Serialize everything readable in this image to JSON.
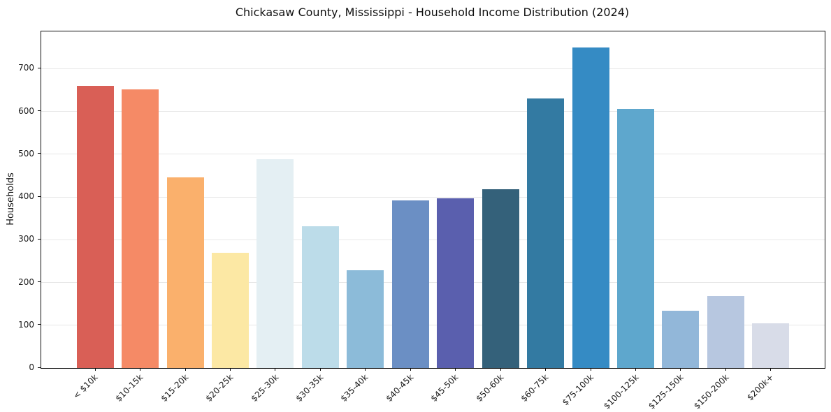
{
  "chart_data": {
    "type": "bar",
    "title": "Chickasaw County, Mississippi - Household Income Distribution (2024)",
    "xlabel": "",
    "ylabel": "Households",
    "categories": [
      "< $10k",
      "$10-15k",
      "$15-20k",
      "$20-25k",
      "$25-30k",
      "$30-35k",
      "$35-40k",
      "$40-45k",
      "$45-50k",
      "$50-60k",
      "$60-75k",
      "$75-100k",
      "$100-125k",
      "$125-150k",
      "$150-200k",
      "$200k+"
    ],
    "values": [
      660,
      652,
      445,
      270,
      489,
      331,
      228,
      392,
      396,
      418,
      631,
      749,
      605,
      134,
      169,
      105
    ],
    "bar_colors": [
      "#d95f56",
      "#f58a66",
      "#fab06c",
      "#fce8a4",
      "#e4eff3",
      "#bcdce9",
      "#8cbbd9",
      "#6b8fc4",
      "#5a5fae",
      "#34617a",
      "#337aa2",
      "#358bc4",
      "#5ea7cd",
      "#92b7d9",
      "#b7c7e0",
      "#d8dce8"
    ],
    "yticks": [
      0,
      100,
      200,
      300,
      400,
      500,
      600,
      700
    ],
    "ylim": [
      0,
      787
    ],
    "grid": "horizontal",
    "gridline_color": "#e7e7e7",
    "axis_color": "#0d0d0d",
    "background_color": "#ffffff",
    "legend": "none"
  }
}
